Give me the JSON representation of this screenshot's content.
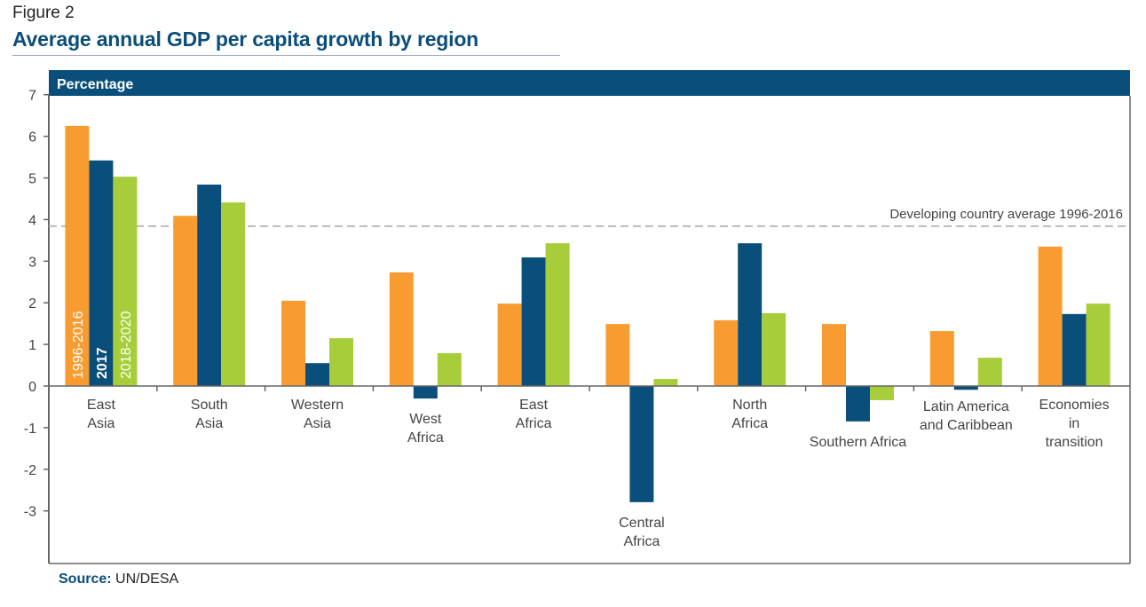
{
  "figure_label": "Figure 2",
  "title": "Average annual GDP per capita growth by region",
  "source_label": "Source:",
  "source_value": "UN/DESA",
  "colors": {
    "header_band": "#0a4f7b",
    "series_1996_2016": "#f89c31",
    "series_2017": "#0a4f7b",
    "series_2018_2020": "#a7ce3a",
    "reference_line": "#bbbbbb",
    "axis": "#666666",
    "text": "#444444"
  },
  "chart_data": {
    "type": "bar",
    "title": "Average annual GDP per capita growth by region",
    "ylabel": "Percentage",
    "xlabel": "",
    "ylim": [
      -4,
      7
    ],
    "yticks": [
      7,
      6,
      5,
      4,
      3,
      2,
      1,
      0,
      -1,
      -2,
      -3
    ],
    "grid": false,
    "legend_placement": "inside first group bars (vertical labels)",
    "categories": [
      [
        "East",
        "Asia"
      ],
      [
        "South",
        "Asia"
      ],
      [
        "Western",
        "Asia"
      ],
      [
        "West",
        "Africa"
      ],
      [
        "East",
        "Africa"
      ],
      [
        "Central",
        "Africa"
      ],
      [
        "North",
        "Africa"
      ],
      [
        "Southern Africa"
      ],
      [
        "Latin America",
        "and Caribbean"
      ],
      [
        "Economies",
        "in",
        "transition"
      ]
    ],
    "series": [
      {
        "name": "1996-2016",
        "color": "#f89c31",
        "values": [
          6.25,
          4.09,
          2.05,
          2.73,
          1.98,
          1.49,
          1.58,
          1.49,
          1.32,
          3.35
        ]
      },
      {
        "name": "2017",
        "color": "#0a4f7b",
        "values": [
          5.42,
          4.84,
          0.55,
          -0.3,
          3.09,
          -2.79,
          3.43,
          -0.85,
          -0.09,
          1.73
        ]
      },
      {
        "name": "2018-2020",
        "color": "#a7ce3a",
        "values": [
          5.03,
          4.41,
          1.15,
          0.79,
          3.43,
          0.17,
          1.75,
          -0.34,
          0.68,
          1.98
        ]
      }
    ],
    "reference_line": {
      "label": "Developing country average 1996-2016",
      "value": 3.84,
      "style": "dashed"
    }
  }
}
